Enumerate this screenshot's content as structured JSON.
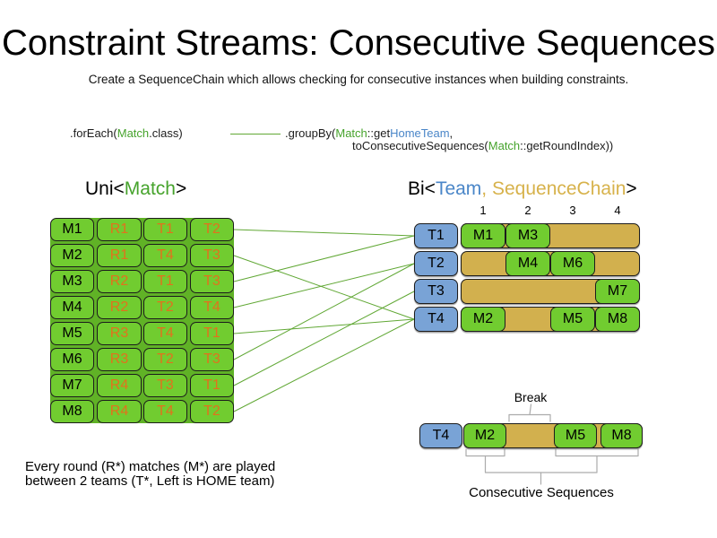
{
  "title": "Constraint Streams: Consecutive Sequences",
  "subtitle": "Create a SequenceChain which allows checking for consecutive instances when building constraints.",
  "code": {
    "foreach_pre": ".forEach(",
    "foreach_match": "Match",
    "foreach_post": ".class)",
    "groupby_pre": ".groupBy(",
    "groupby_match": "Match",
    "groupby_mid": "::get",
    "groupby_hometeam": "HomeTeam",
    "groupby_comma": ",",
    "line2_pre": "toConsecutiveSequences(",
    "line2_match": "Match",
    "line2_post": "::getRoundIndex))"
  },
  "uni_header": {
    "pre": "Uni<",
    "type1": "Match",
    "post": ">"
  },
  "bi_header": {
    "pre": "Bi<",
    "type1": "Team",
    "comma": ", ",
    "type2": "SequenceChain",
    "post": ">"
  },
  "match_table": {
    "rows": [
      {
        "id": "M1",
        "round": "R1",
        "home": "T1",
        "away": "T2"
      },
      {
        "id": "M2",
        "round": "R1",
        "home": "T4",
        "away": "T3"
      },
      {
        "id": "M3",
        "round": "R2",
        "home": "T1",
        "away": "T3"
      },
      {
        "id": "M4",
        "round": "R2",
        "home": "T2",
        "away": "T4"
      },
      {
        "id": "M5",
        "round": "R3",
        "home": "T4",
        "away": "T1"
      },
      {
        "id": "M6",
        "round": "R3",
        "home": "T2",
        "away": "T3"
      },
      {
        "id": "M7",
        "round": "R4",
        "home": "T3",
        "away": "T1"
      },
      {
        "id": "M8",
        "round": "R4",
        "home": "T4",
        "away": "T2"
      }
    ]
  },
  "sequence_table": {
    "column_headers": [
      "1",
      "2",
      "3",
      "4"
    ],
    "rows": [
      {
        "team": "T1",
        "cells": [
          {
            "label": "M1",
            "col": 0
          },
          {
            "label": "M3",
            "col": 1
          }
        ]
      },
      {
        "team": "T2",
        "cells": [
          {
            "label": "M4",
            "col": 1
          },
          {
            "label": "M6",
            "col": 2
          }
        ]
      },
      {
        "team": "T3",
        "cells": [
          {
            "label": "M7",
            "col": 3
          }
        ]
      },
      {
        "team": "T4",
        "cells": [
          {
            "label": "M2",
            "col": 0
          },
          {
            "label": "M5",
            "col": 2
          },
          {
            "label": "M8",
            "col": 3
          }
        ]
      }
    ]
  },
  "break_example": {
    "team": "T4",
    "cells": [
      {
        "label": "M2"
      },
      {
        "label": "M5"
      },
      {
        "label": "M8"
      }
    ],
    "break_label": "Break",
    "sequences_label": "Consecutive Sequences"
  },
  "footnote": {
    "line1": "Every round (R*) matches (M*) are played",
    "line2": "between 2 teams (T*, Left is HOME team)"
  },
  "colors": {
    "cell_green": "#71CC30",
    "bar_gold": "#D2B04E",
    "team_blue": "#79A3D6",
    "orange_text": "#E2711D",
    "green_text": "#46A32C",
    "blue_text": "#4A86C8",
    "gold_text": "#D7B24B",
    "connector_green": "#61A835",
    "bracket_gray": "#ACACAC"
  }
}
